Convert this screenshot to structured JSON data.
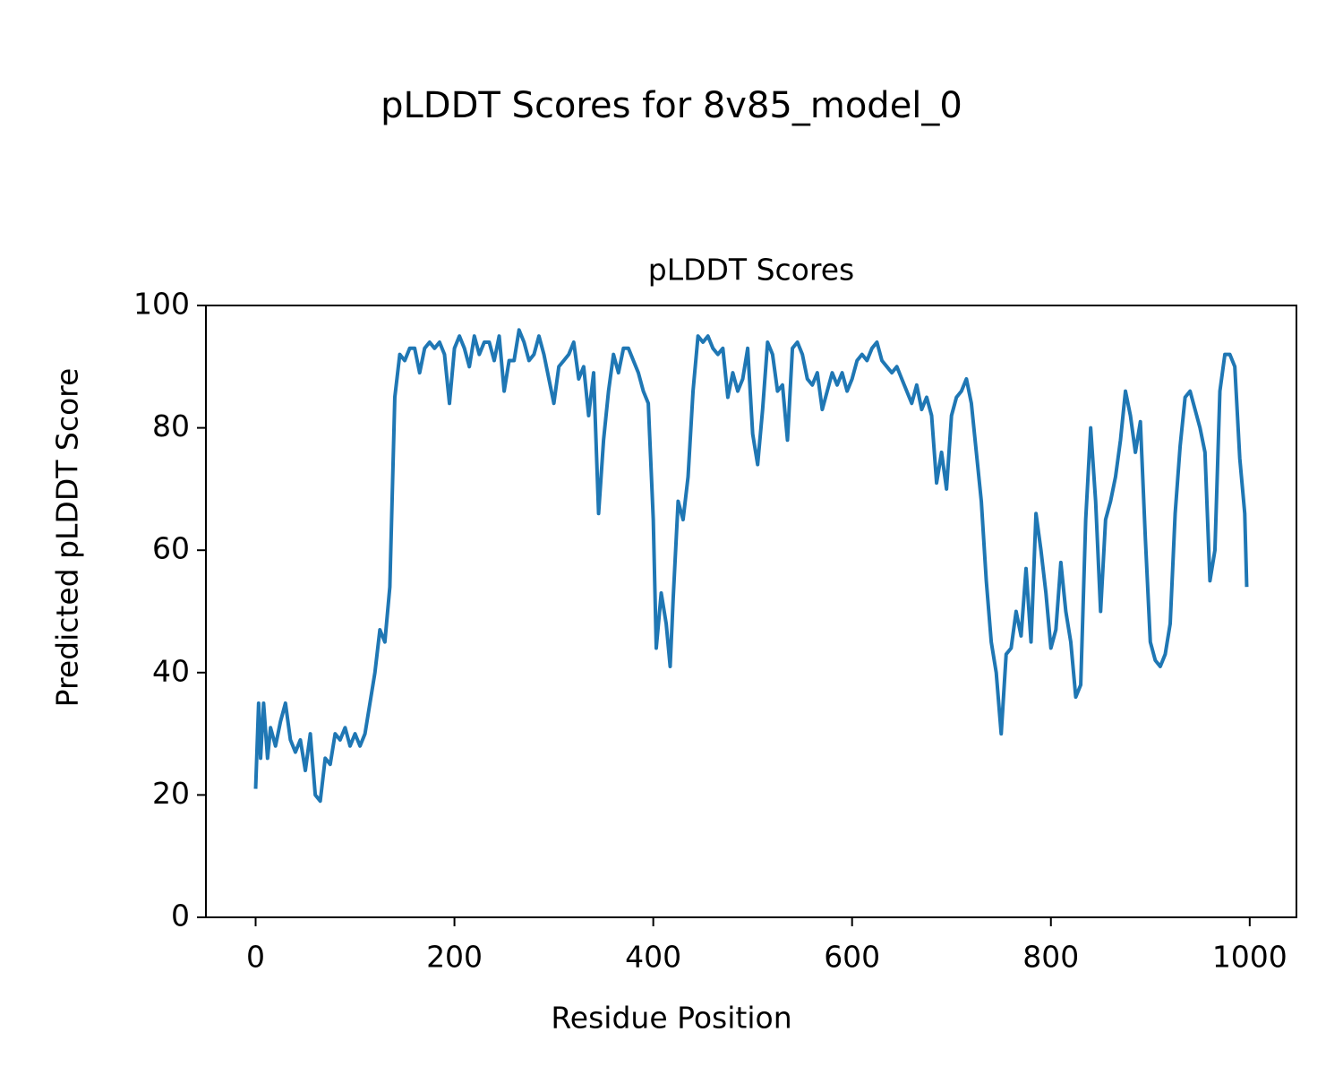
{
  "chart_data": {
    "type": "line",
    "title": "pLDDT Scores for 8v85_model_0",
    "subtitle": "pLDDT Scores",
    "x_label": "Residue Position",
    "y_label": "Predicted pLDDT Score",
    "xlim": [
      -50,
      1047
    ],
    "ylim": [
      0,
      100
    ],
    "xticks": [
      0,
      200,
      400,
      600,
      800,
      1000
    ],
    "yticks": [
      0,
      20,
      40,
      60,
      80,
      100
    ],
    "grid": false,
    "series": [
      {
        "name": "pLDDT",
        "color": "#1f77b4",
        "x": [
          0,
          3,
          5,
          8,
          12,
          15,
          20,
          25,
          30,
          35,
          40,
          45,
          50,
          55,
          60,
          65,
          70,
          75,
          80,
          85,
          90,
          95,
          100,
          105,
          110,
          115,
          120,
          125,
          130,
          135,
          140,
          145,
          150,
          155,
          160,
          165,
          170,
          175,
          180,
          185,
          190,
          195,
          200,
          205,
          210,
          215,
          220,
          225,
          230,
          235,
          240,
          245,
          250,
          255,
          260,
          265,
          270,
          275,
          280,
          285,
          290,
          295,
          300,
          305,
          310,
          315,
          320,
          325,
          330,
          335,
          340,
          345,
          350,
          355,
          360,
          365,
          370,
          375,
          380,
          385,
          390,
          395,
          400,
          403,
          408,
          413,
          417,
          420,
          425,
          430,
          435,
          440,
          445,
          450,
          455,
          460,
          465,
          470,
          475,
          480,
          485,
          490,
          495,
          500,
          505,
          510,
          515,
          520,
          525,
          530,
          535,
          540,
          545,
          550,
          555,
          560,
          565,
          570,
          575,
          580,
          585,
          590,
          595,
          600,
          605,
          610,
          615,
          620,
          625,
          630,
          635,
          640,
          645,
          650,
          655,
          660,
          665,
          670,
          675,
          680,
          685,
          690,
          695,
          700,
          705,
          710,
          715,
          720,
          725,
          730,
          735,
          740,
          745,
          750,
          755,
          760,
          765,
          770,
          775,
          780,
          785,
          790,
          795,
          800,
          805,
          810,
          815,
          820,
          825,
          830,
          835,
          840,
          845,
          850,
          855,
          860,
          865,
          870,
          875,
          880,
          885,
          890,
          895,
          900,
          905,
          910,
          915,
          920,
          925,
          930,
          935,
          940,
          945,
          950,
          955,
          960,
          965,
          970,
          975,
          980,
          985,
          990,
          995,
          997
        ],
        "values": [
          21,
          35,
          26,
          35,
          26,
          31,
          28,
          32,
          35,
          29,
          27,
          29,
          24,
          30,
          20,
          19,
          26,
          25,
          30,
          29,
          31,
          28,
          30,
          28,
          30,
          35,
          40,
          47,
          45,
          54,
          85,
          92,
          91,
          93,
          93,
          89,
          93,
          94,
          93,
          94,
          92,
          84,
          93,
          95,
          93,
          90,
          95,
          92,
          94,
          94,
          91,
          95,
          86,
          91,
          91,
          96,
          94,
          91,
          92,
          95,
          92,
          88,
          84,
          90,
          91,
          92,
          94,
          88,
          90,
          82,
          89,
          66,
          78,
          86,
          92,
          89,
          93,
          93,
          91,
          89,
          86,
          84,
          65,
          44,
          53,
          48,
          41,
          52,
          68,
          65,
          72,
          86,
          95,
          94,
          95,
          93,
          92,
          93,
          85,
          89,
          86,
          88,
          93,
          79,
          74,
          83,
          94,
          92,
          86,
          87,
          78,
          93,
          94,
          92,
          88,
          87,
          89,
          83,
          86,
          89,
          87,
          89,
          86,
          88,
          91,
          92,
          91,
          93,
          94,
          91,
          90,
          89,
          90,
          88,
          86,
          84,
          87,
          83,
          85,
          82,
          71,
          76,
          70,
          82,
          85,
          86,
          88,
          84,
          76,
          68,
          55,
          45,
          40,
          30,
          43,
          44,
          50,
          46,
          57,
          45,
          66,
          60,
          53,
          44,
          47,
          58,
          50,
          45,
          36,
          38,
          65,
          80,
          68,
          50,
          65,
          68,
          72,
          78,
          86,
          82,
          76,
          81,
          62,
          45,
          42,
          41,
          43,
          48,
          66,
          77,
          85,
          86,
          83,
          80,
          76,
          55,
          60,
          86,
          92,
          92,
          90,
          75,
          66,
          54
        ]
      }
    ]
  }
}
